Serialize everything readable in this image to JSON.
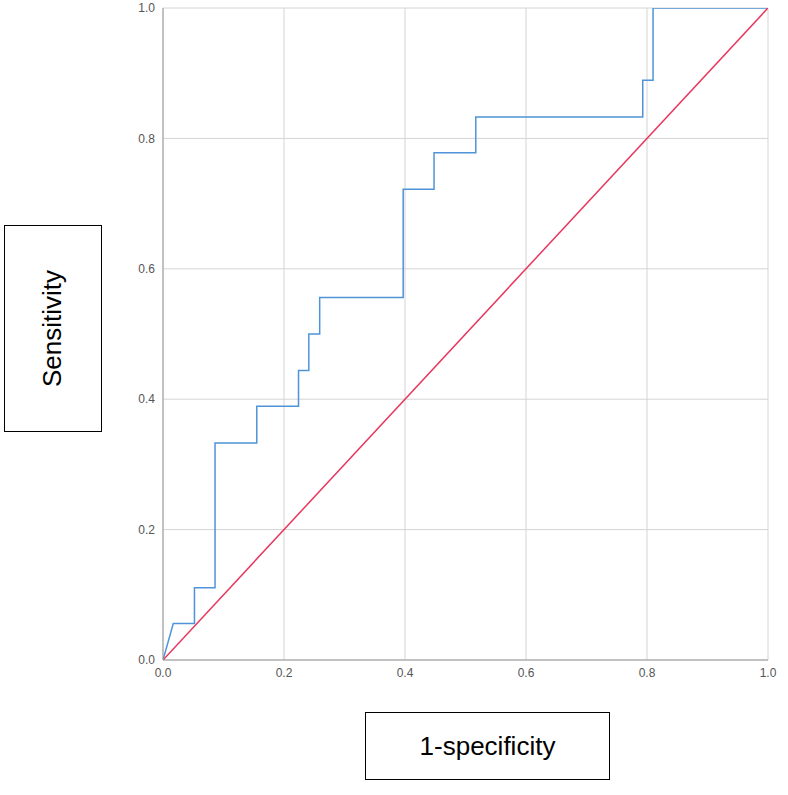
{
  "chart_data": {
    "type": "line",
    "x_label": "1-specificity",
    "y_label": "Sensitivity",
    "xlim": [
      0,
      1
    ],
    "ylim": [
      0,
      1
    ],
    "xticks": [
      {
        "value": 0,
        "label": "0.0"
      },
      {
        "value": 0.2,
        "label": "0.2"
      },
      {
        "value": 0.4,
        "label": "0.4"
      },
      {
        "value": 0.6,
        "label": "0.6"
      },
      {
        "value": 0.8,
        "label": "0.8"
      },
      {
        "value": 1,
        "label": "1.0"
      }
    ],
    "yticks": [
      {
        "value": 0,
        "label": "0.0"
      },
      {
        "value": 0.2,
        "label": "0.2"
      },
      {
        "value": 0.4,
        "label": "0.4"
      },
      {
        "value": 0.6,
        "label": "0.6"
      },
      {
        "value": 0.8,
        "label": "0.8"
      },
      {
        "value": 1,
        "label": "1.0"
      }
    ],
    "grid": true,
    "series": [
      {
        "color": "#4f94d8",
        "x": [
          0,
          0.017,
          0.052,
          0.052,
          0.086,
          0.086,
          0.155,
          0.155,
          0.224,
          0.224,
          0.241,
          0.241,
          0.259,
          0.259,
          0.397,
          0.397,
          0.448,
          0.448,
          0.517,
          0.517,
          0.793,
          0.793,
          0.81,
          0.81,
          1.0
        ],
        "values": [
          0,
          0.056,
          0.056,
          0.111,
          0.111,
          0.333,
          0.333,
          0.389,
          0.389,
          0.444,
          0.444,
          0.5,
          0.5,
          0.556,
          0.556,
          0.722,
          0.722,
          0.778,
          0.778,
          0.833,
          0.833,
          0.889,
          0.889,
          1.0,
          1.0
        ]
      },
      {
        "color": "#e8365d",
        "x": [
          0,
          1
        ],
        "values": [
          0,
          1
        ]
      }
    ]
  }
}
